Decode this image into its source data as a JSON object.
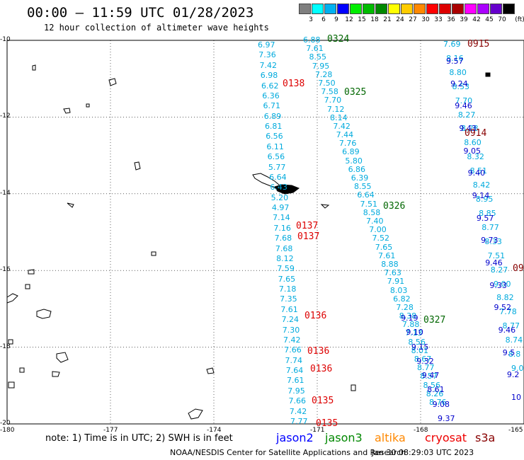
{
  "header": {
    "title": "00:00 – 11:59 UTC 01/28/2023",
    "subtitle": "12 hour collection of altimeter wave heights"
  },
  "color_scale": {
    "unit_label": "(ft)",
    "bins": [
      {
        "color": "#7f7f7f",
        "label": "3"
      },
      {
        "color": "#00ffff",
        "label": "6"
      },
      {
        "color": "#00b0f0",
        "label": "9"
      },
      {
        "color": "#0000ff",
        "label": "12"
      },
      {
        "color": "#00ee00",
        "label": "15"
      },
      {
        "color": "#00bb00",
        "label": "18"
      },
      {
        "color": "#008800",
        "label": "21"
      },
      {
        "color": "#ffff00",
        "label": "24"
      },
      {
        "color": "#ffcc00",
        "label": "27"
      },
      {
        "color": "#ff8800",
        "label": "30"
      },
      {
        "color": "#ff0000",
        "label": "33"
      },
      {
        "color": "#dd0000",
        "label": "36"
      },
      {
        "color": "#aa0000",
        "label": "39"
      },
      {
        "color": "#ff00ff",
        "label": "42"
      },
      {
        "color": "#aa00ff",
        "label": "45"
      },
      {
        "color": "#6600cc",
        "label": "70"
      },
      {
        "color": "#000000",
        "label": ""
      }
    ]
  },
  "axes": {
    "lat_labels": [
      {
        "label": "-10",
        "y": -10
      },
      {
        "label": "-12",
        "y": -12
      },
      {
        "label": "-14",
        "y": -14
      },
      {
        "label": "-16",
        "y": -16
      },
      {
        "label": "-18",
        "y": -18
      },
      {
        "label": "-20",
        "y": -20
      }
    ],
    "lon_labels": [
      {
        "label": "-180",
        "x": -180
      },
      {
        "label": "-177",
        "x": -177
      },
      {
        "label": "-174",
        "x": -174
      },
      {
        "label": "-171",
        "x": -171
      },
      {
        "label": "-168",
        "x": -168
      },
      {
        "label": "-165",
        "x": -165
      }
    ],
    "lat_range": [
      -20,
      -10
    ],
    "lon_range": [
      -180,
      -165
    ]
  },
  "tracks": {
    "track_a": {
      "color": "#00aadd",
      "values": [
        "6.97",
        "7.36",
        "7.42",
        "6.98",
        "6.62",
        "6.36",
        "6.71",
        "6.89",
        "6.81",
        "6.56",
        "6.11",
        "6.56",
        "5.77",
        "6.64",
        "6.43",
        "5.20",
        "4.97",
        "7.14",
        "7.16",
        "7.68",
        "7.68",
        "8.12",
        "7.59",
        "7.65",
        "7.18",
        "7.35",
        "7.61",
        "7.24",
        "7.30",
        "7.42",
        "7.66",
        "7.74",
        "7.64",
        "7.61",
        "7.95",
        "7.66",
        "7.42",
        "7.77"
      ]
    },
    "track_b": {
      "color": "#00aadd",
      "values": [
        "6.88",
        "7.61",
        "8.55",
        "7.95",
        "7.28",
        "7.50",
        "7.58",
        "7.70",
        "7.12",
        "8.14",
        "7.42",
        "7.44",
        "7.76",
        "6.89",
        "5.80",
        "6.86",
        "6.39",
        "8.55",
        "6.64",
        "7.51",
        "8.58",
        "7.40",
        "7.00",
        "7.52",
        "7.65",
        "7.61",
        "8.88",
        "7.63",
        "7.91",
        "8.03",
        "6.82",
        "7.28",
        "8.38",
        "7.88",
        "7.13",
        "8.56",
        "8.01",
        "8.67",
        "8.77",
        "8.57",
        "8.56",
        "8.26",
        "8.76"
      ]
    },
    "track_b_blue": {
      "color": "#0000cc",
      "values": [
        "9.19",
        "9.10",
        "9.15",
        "9.32",
        "9.47",
        "8.61",
        "9.08",
        "9.37"
      ]
    },
    "track_c": {
      "color": "#00aadd",
      "values": [
        "7.69",
        "8.16",
        "8.80",
        "8.53",
        "7.70",
        "8.27",
        "8.28",
        "8.60",
        "8.32",
        "8.51",
        "8.42",
        "8.95",
        "8.85",
        "8.77",
        "8.33",
        "7.51",
        "8.27",
        "9.00",
        "8.82",
        "7.78",
        "8.77",
        "8.74",
        "8.8",
        "9.0"
      ]
    },
    "track_c_blue": {
      "color": "#0000cc",
      "values": [
        "9.57",
        "9.24",
        "9.46",
        "9.43",
        "9.05",
        "9.40",
        "9.14",
        "9.57",
        "9.73",
        "9.46",
        "9.33",
        "9.52",
        "9.46",
        "9.5",
        "9.2",
        "10"
      ]
    }
  },
  "time_labels": [
    {
      "text": "0324",
      "color": "#006600"
    },
    {
      "text": "0325",
      "color": "#006600"
    },
    {
      "text": "0326",
      "color": "#006600"
    },
    {
      "text": "0327",
      "color": "#006600"
    },
    {
      "text": "0915",
      "color": "#880000"
    },
    {
      "text": "0914",
      "color": "#880000"
    },
    {
      "text": "09",
      "color": "#880000"
    },
    {
      "text": "0138",
      "color": "#dd0000"
    },
    {
      "text": "0137",
      "color": "#dd0000"
    },
    {
      "text": "0137",
      "color": "#dd0000"
    },
    {
      "text": "0136",
      "color": "#dd0000"
    },
    {
      "text": "0136",
      "color": "#dd0000"
    },
    {
      "text": "0136",
      "color": "#dd0000"
    },
    {
      "text": "0135",
      "color": "#dd0000"
    },
    {
      "text": "0135",
      "color": "#dd0000"
    }
  ],
  "footer": {
    "note": "note:  1) Time is in UTC;  2) SWH is in feet",
    "satellites": [
      {
        "name": "jason2",
        "color": "#0000ff"
      },
      {
        "name": "jason3",
        "color": "#008800"
      },
      {
        "name": "altika",
        "color": "#ff8800"
      },
      {
        "name": "cryosat",
        "color": "#ee0000"
      },
      {
        "name": "s3a",
        "color": "#880000"
      }
    ],
    "credit": "NOAA/NESDIS Center for Satellite Applications and Research",
    "timestamp": "Jan 30 08:29:03 UTC 2023"
  }
}
